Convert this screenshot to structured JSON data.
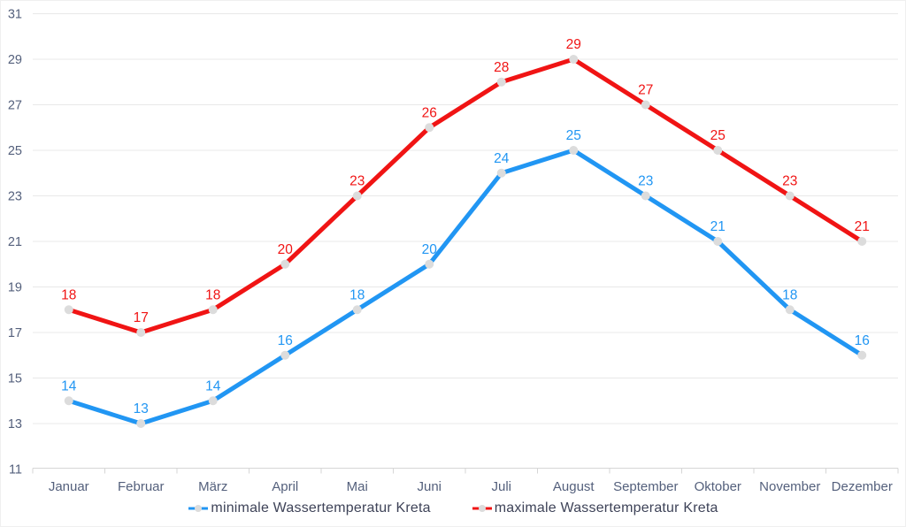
{
  "chart_data": {
    "type": "line",
    "title": "",
    "xlabel": "",
    "ylabel": "",
    "categories": [
      "Januar",
      "Februar",
      "März",
      "April",
      "Mai",
      "Juni",
      "Juli",
      "August",
      "September",
      "Oktober",
      "November",
      "Dezember"
    ],
    "series": [
      {
        "name": "minimale Wassertemperatur Kreta",
        "color": "#2196F3",
        "values": [
          14,
          13,
          14,
          16,
          18,
          20,
          24,
          25,
          23,
          21,
          18,
          16
        ]
      },
      {
        "name": "maximale Wassertemperatur Kreta",
        "color": "#F01414",
        "values": [
          18,
          17,
          18,
          20,
          23,
          26,
          28,
          29,
          27,
          25,
          23,
          21
        ]
      }
    ],
    "ylim": [
      11,
      31
    ],
    "ytick_step": 2,
    "yticks": [
      11,
      13,
      15,
      17,
      19,
      21,
      23,
      25,
      27,
      29,
      31
    ],
    "grid": true,
    "data_labels": true,
    "legend_position": "bottom",
    "marker_fill": "#DCDCDC",
    "axis_text_color": "#54607C",
    "legend_text_color": "#3E4358",
    "gridline_color": "#E8E8E8",
    "axisline_color": "#D6D6D6"
  }
}
